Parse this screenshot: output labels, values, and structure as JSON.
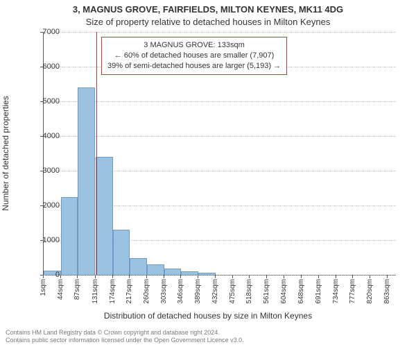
{
  "title_line1": "3, MAGNUS GROVE, FAIRFIELDS, MILTON KEYNES, MK11 4DG",
  "title_line2": "Size of property relative to detached houses in Milton Keynes",
  "ylabel": "Number of detached properties",
  "xlabel": "Distribution of detached houses by size in Milton Keynes",
  "annotation": {
    "line1": "3 MAGNUS GROVE: 133sqm",
    "line2": "← 60% of detached houses are smaller (7,907)",
    "line3": "39% of semi-detached houses are larger (5,193) →",
    "border_color": "#cc3333",
    "background_color": "#ffffff",
    "fontsize": 11
  },
  "footer_line1": "Contains HM Land Registry data © Crown copyright and database right 2024.",
  "footer_line2": "Contains public sector information licensed under the Open Government Licence v3.0.",
  "chart": {
    "type": "histogram",
    "xlim": [
      1,
      884
    ],
    "ylim": [
      0,
      7000
    ],
    "ytick_step": 1000,
    "yticks": [
      0,
      1000,
      2000,
      3000,
      4000,
      5000,
      6000,
      7000
    ],
    "xticks_labels": [
      "1sqm",
      "44sqm",
      "87sqm",
      "131sqm",
      "174sqm",
      "217sqm",
      "260sqm",
      "303sqm",
      "346sqm",
      "389sqm",
      "432sqm",
      "475sqm",
      "518sqm",
      "561sqm",
      "604sqm",
      "648sqm",
      "691sqm",
      "734sqm",
      "777sqm",
      "820sqm",
      "863sqm"
    ],
    "xticks_values": [
      1,
      44,
      87,
      131,
      174,
      217,
      260,
      303,
      346,
      389,
      432,
      475,
      518,
      561,
      604,
      648,
      691,
      734,
      777,
      820,
      863
    ],
    "bin_width": 43,
    "bars": {
      "x_left": [
        1,
        44,
        87,
        131,
        174,
        217,
        260,
        303,
        346,
        389
      ],
      "heights": [
        120,
        2250,
        5400,
        3400,
        1300,
        480,
        310,
        180,
        110,
        60
      ]
    },
    "marker_x": 133,
    "marker_color": "#cc3333",
    "bar_fill_color": "#91bbde",
    "bar_border_color": "#6a9bc9",
    "grid_color": "#bdbdbd",
    "axis_color": "#555555",
    "background_color": "#ffffff",
    "title_fontsize": 13,
    "label_fontsize": 12,
    "tick_fontsize": 11,
    "xtick_fontsize": 10,
    "footer_fontsize": 9,
    "footer_color": "#7a7a7a"
  }
}
